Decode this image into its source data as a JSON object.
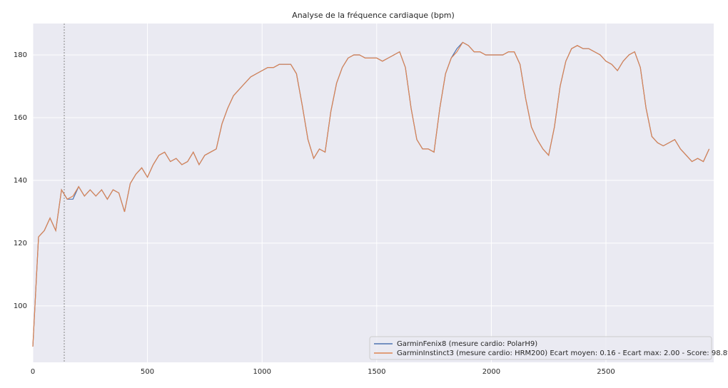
{
  "chart_data": {
    "type": "line",
    "title": "Analyse de la fréquence cardiaque (bpm)",
    "x": [
      0,
      25,
      50,
      75,
      100,
      125,
      150,
      175,
      200,
      225,
      250,
      275,
      300,
      325,
      350,
      375,
      400,
      425,
      450,
      475,
      500,
      525,
      550,
      575,
      600,
      625,
      650,
      675,
      700,
      725,
      750,
      775,
      800,
      825,
      850,
      875,
      900,
      925,
      950,
      975,
      1000,
      1025,
      1050,
      1075,
      1100,
      1125,
      1150,
      1175,
      1200,
      1225,
      1250,
      1275,
      1300,
      1325,
      1350,
      1375,
      1400,
      1425,
      1450,
      1475,
      1500,
      1525,
      1550,
      1575,
      1600,
      1625,
      1650,
      1675,
      1700,
      1725,
      1750,
      1775,
      1800,
      1825,
      1850,
      1875,
      1900,
      1925,
      1950,
      1975,
      2000,
      2025,
      2050,
      2075,
      2100,
      2125,
      2150,
      2175,
      2200,
      2225,
      2250,
      2275,
      2300,
      2325,
      2350,
      2375,
      2400,
      2425,
      2450,
      2475,
      2500,
      2525,
      2550,
      2575,
      2600,
      2625,
      2650,
      2675,
      2700,
      2725,
      2750,
      2775,
      2800,
      2825,
      2850,
      2875,
      2900,
      2925,
      2950
    ],
    "series": [
      {
        "name": "GarminFenix8 (mesure cardio: PolarH9)",
        "color": "#4c72b0",
        "values": [
          87,
          122,
          124,
          128,
          124,
          137,
          134,
          134,
          138,
          135,
          137,
          135,
          137,
          134,
          137,
          136,
          130,
          139,
          142,
          144,
          141,
          145,
          148,
          149,
          146,
          147,
          145,
          146,
          149,
          145,
          148,
          149,
          150,
          158,
          163,
          167,
          169,
          171,
          173,
          174,
          175,
          176,
          176,
          177,
          177,
          177,
          174,
          164,
          153,
          147,
          150,
          149,
          162,
          171,
          176,
          179,
          180,
          180,
          179,
          179,
          179,
          178,
          179,
          180,
          181,
          176,
          163,
          153,
          150,
          150,
          149,
          163,
          174,
          179,
          182,
          184,
          183,
          181,
          181,
          180,
          180,
          180,
          180,
          181,
          181,
          177,
          166,
          157,
          153,
          150,
          148,
          157,
          170,
          178,
          182,
          183,
          182,
          182,
          181,
          180,
          178,
          177,
          175,
          178,
          180,
          181,
          176,
          163,
          154,
          152,
          151,
          152,
          153,
          150,
          148,
          146,
          147,
          146,
          150
        ]
      },
      {
        "name": "GarminInstinct3 (mesure cardio: HRM200) Ecart moyen: 0.16 - Ecart max: 2.00 - Score: 98.8%",
        "color": "#dd8452",
        "values": [
          87,
          122,
          124,
          128,
          124,
          137,
          134,
          135,
          138,
          135,
          137,
          135,
          137,
          134,
          137,
          136,
          130,
          139,
          142,
          144,
          141,
          145,
          148,
          149,
          146,
          147,
          145,
          146,
          149,
          145,
          148,
          149,
          150,
          158,
          163,
          167,
          169,
          171,
          173,
          174,
          175,
          176,
          176,
          177,
          177,
          177,
          174,
          164,
          153,
          147,
          150,
          149,
          162,
          171,
          176,
          179,
          180,
          180,
          179,
          179,
          179,
          178,
          179,
          180,
          181,
          176,
          163,
          153,
          150,
          150,
          149,
          163,
          174,
          179,
          181,
          184,
          183,
          181,
          181,
          180,
          180,
          180,
          180,
          181,
          181,
          177,
          166,
          157,
          153,
          150,
          148,
          157,
          170,
          178,
          182,
          183,
          182,
          182,
          181,
          180,
          178,
          177,
          175,
          178,
          180,
          181,
          176,
          163,
          154,
          152,
          151,
          152,
          153,
          150,
          148,
          146,
          147,
          146,
          150
        ]
      }
    ],
    "vlines": [
      137
    ],
    "xlim": [
      0,
      2970
    ],
    "xticks": [
      0,
      500,
      1000,
      1500,
      2000,
      2500
    ],
    "ylim": [
      82,
      190
    ],
    "yticks": [
      100,
      120,
      140,
      160,
      180
    ],
    "grid": true,
    "legend": "lower right"
  }
}
